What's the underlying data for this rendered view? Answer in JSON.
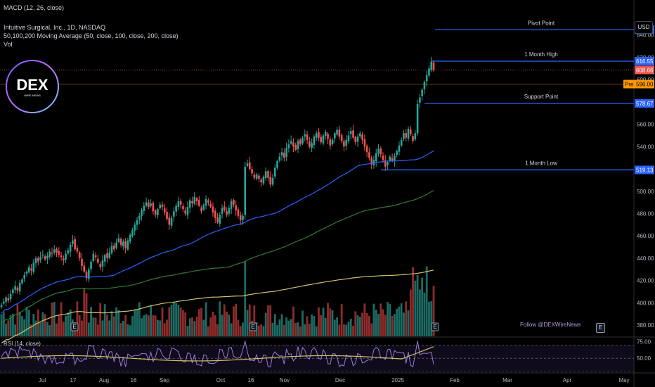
{
  "header": {
    "indicator_label": "MACD (12, 26, close)",
    "symbol_line": "Intuitive Surgical, Inc., 1D, NASDAQ",
    "ma_line": "50,100,200 Moving Average (50, close, 100, close, 200, close)",
    "vol_label": "Vol"
  },
  "logo": {
    "text": "DEX",
    "subtext": "WIRE NEWS"
  },
  "currency_button": "USD",
  "watermark": "Follow @DEXWireNews",
  "earnings_badge": "E",
  "rsi_label": "RSI (14, close)",
  "colors": {
    "up": "#26a69a",
    "down": "#ef5350",
    "vol_up": "#1c6b63",
    "vol_down": "#8e2c2c",
    "ma50": "#2962ff",
    "ma100": "#2e7d32",
    "ma200": "#d4c06a",
    "level_line": "#2962ff",
    "rsi": "#9c7bd8",
    "rsi_ma": "#d4c06a"
  },
  "chart_data": {
    "type": "candlestick",
    "x_ticks": [
      "Jul",
      "17",
      "Aug",
      "16",
      "Sep",
      "Oct",
      "16",
      "Nov",
      "Dec",
      "2025",
      "Feb",
      "Mar",
      "Apr",
      "May"
    ],
    "y_ticks": [
      380,
      400,
      420,
      440,
      460,
      480,
      500,
      520,
      540,
      560,
      580,
      600,
      620,
      640
    ],
    "ylim": [
      370,
      660
    ],
    "levels": [
      {
        "name": "Pivot Point",
        "value": 644.7,
        "label": "644.70"
      },
      {
        "name": "1 Month High",
        "value": 616.55,
        "label": "616.55"
      },
      {
        "name": "Support Point",
        "value": 578.67,
        "label": "578.67"
      },
      {
        "name": "1 Month Low",
        "value": 519.13,
        "label": "519.13"
      }
    ],
    "last_price": {
      "value": 608.66,
      "label": "608.66"
    },
    "premarket": {
      "tag": "Pre",
      "value": 596.0,
      "label": "596.00"
    },
    "closes": [
      398,
      401,
      405,
      402,
      408,
      412,
      415,
      411,
      418,
      421,
      425,
      428,
      432,
      429,
      436,
      440,
      437,
      441,
      443,
      439,
      442,
      446,
      444,
      448,
      445,
      443,
      441,
      438,
      444,
      447,
      452,
      456,
      448,
      446,
      440,
      433,
      428,
      422,
      430,
      437,
      444,
      441,
      436,
      432,
      438,
      443,
      440,
      445,
      451,
      448,
      454,
      458,
      452,
      455,
      449,
      456,
      461,
      465,
      470,
      474,
      478,
      483,
      487,
      490,
      486,
      489,
      482,
      479,
      484,
      488,
      486,
      481,
      475,
      470,
      476,
      482,
      487,
      491,
      488,
      484,
      480,
      486,
      492,
      489,
      495,
      491,
      487,
      482,
      488,
      493,
      490,
      486,
      481,
      476,
      472,
      479,
      485,
      483,
      479,
      485,
      491,
      488,
      483,
      478,
      474,
      478,
      522,
      525,
      520,
      516,
      512,
      515,
      511,
      508,
      513,
      518,
      512,
      506,
      512,
      521,
      527,
      531,
      535,
      530,
      539,
      542,
      545,
      540,
      537,
      545,
      542,
      548,
      551,
      546,
      540,
      543,
      549,
      552,
      548,
      544,
      550,
      553,
      547,
      541,
      546,
      552,
      555,
      549,
      545,
      540,
      546,
      550,
      554,
      548,
      544,
      549,
      552,
      546,
      540,
      535,
      530,
      524,
      528,
      534,
      538,
      533,
      528,
      522,
      526,
      531,
      527,
      532,
      536,
      541,
      546,
      552,
      548,
      556,
      551,
      545,
      552,
      578,
      584,
      591,
      598,
      604,
      610,
      616,
      609
    ]
  }
}
